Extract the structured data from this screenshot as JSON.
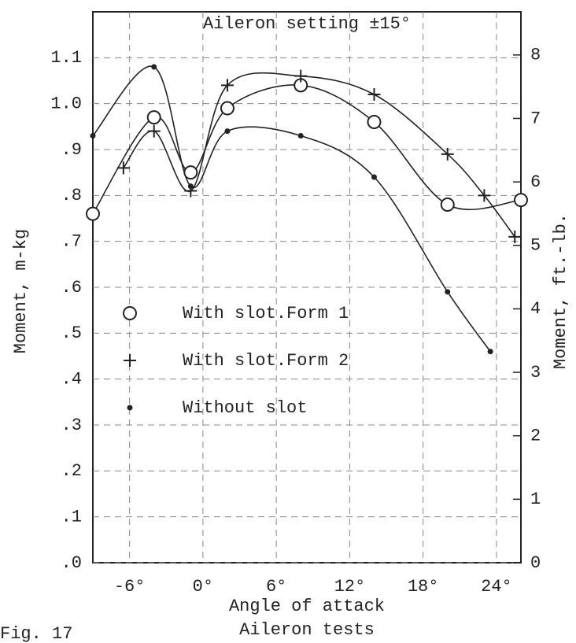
{
  "chart_data": {
    "type": "line",
    "title": "Aileron setting ±15°",
    "xlabel": "Angle of attack",
    "caption": "Aileron tests",
    "figure_label": "Fig. 17",
    "ylabel": "Moment, m-kg",
    "y2label": "Moment, ft.-lb.",
    "xlim": [
      -9,
      26
    ],
    "xticks": [
      {
        "value": -6,
        "label": "-6°"
      },
      {
        "value": 0,
        "label": "0°"
      },
      {
        "value": 6,
        "label": "6°"
      },
      {
        "value": 12,
        "label": "12°"
      },
      {
        "value": 18,
        "label": "18°"
      },
      {
        "value": 24,
        "label": "24°"
      }
    ],
    "ylim": [
      0,
      1.2
    ],
    "yticks": [
      {
        "value": 0,
        "label": ".0"
      },
      {
        "value": 0.1,
        "label": ".1"
      },
      {
        "value": 0.2,
        "label": ".2"
      },
      {
        "value": 0.3,
        "label": ".3"
      },
      {
        "value": 0.4,
        "label": ".4"
      },
      {
        "value": 0.5,
        "label": ".5"
      },
      {
        "value": 0.6,
        "label": ".6"
      },
      {
        "value": 0.7,
        "label": ".7"
      },
      {
        "value": 0.8,
        "label": ".8"
      },
      {
        "value": 0.9,
        "label": ".9"
      },
      {
        "value": 1.0,
        "label": "1.0"
      },
      {
        "value": 1.1,
        "label": "1.1"
      }
    ],
    "y2lim": [
      0,
      8.68
    ],
    "y2ticks": [
      0,
      1,
      2,
      3,
      4,
      5,
      6,
      7,
      8
    ],
    "grid": true,
    "series": [
      {
        "name": "With slot.Form 1",
        "marker": "circle",
        "color": "#222222",
        "x": [
          -9,
          -4,
          -1,
          2,
          8,
          14,
          20,
          26
        ],
        "values": [
          0.76,
          0.97,
          0.85,
          0.99,
          1.04,
          0.96,
          0.78,
          0.79
        ]
      },
      {
        "name": "With slot.Form 2",
        "marker": "plus",
        "color": "#222222",
        "x": [
          -6.5,
          -4,
          -1,
          2,
          8,
          14,
          20,
          23,
          25.5
        ],
        "values": [
          0.86,
          0.94,
          0.81,
          1.04,
          1.06,
          1.02,
          0.89,
          0.8,
          0.71
        ]
      },
      {
        "name": "Without slot",
        "marker": "dot",
        "color": "#222222",
        "x": [
          -9,
          -4,
          -1,
          2,
          8,
          14,
          20,
          23.5
        ],
        "values": [
          0.93,
          1.08,
          0.82,
          0.94,
          0.93,
          0.84,
          0.59,
          0.46
        ]
      }
    ]
  }
}
